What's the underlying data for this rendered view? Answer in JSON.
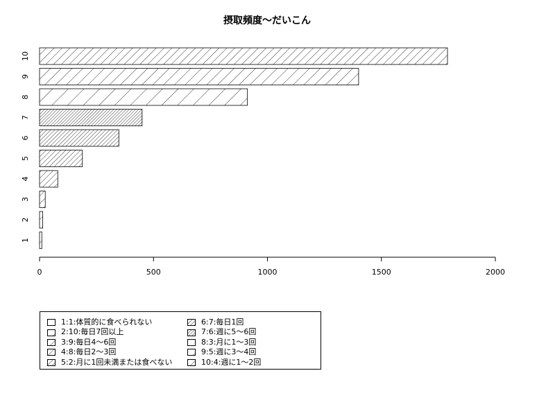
{
  "chart_data": {
    "type": "bar",
    "orientation": "horizontal",
    "title": "摂取頻度〜だいこん",
    "categories": [
      "1",
      "2",
      "3",
      "4",
      "5",
      "6",
      "7",
      "8",
      "9",
      "10"
    ],
    "values": [
      10,
      14,
      25,
      80,
      188,
      348,
      450,
      912,
      1400,
      1790
    ],
    "xlim": [
      0,
      2000
    ],
    "x_ticks": [
      0,
      500,
      1000,
      1500,
      2000
    ],
    "grid": false,
    "legend_position": "bottom-left",
    "patterns": [
      {
        "angle": 45,
        "density": 1
      },
      {
        "angle": 45,
        "density": 2
      },
      {
        "angle": 45,
        "density": 3
      },
      {
        "angle": 45,
        "density": 4
      },
      {
        "angle": 45,
        "density": 5
      },
      {
        "angle": 45,
        "density": 6
      },
      {
        "angle": 45,
        "density": 7
      },
      {
        "angle": 45,
        "density": 1
      },
      {
        "angle": 45,
        "density": 2
      },
      {
        "angle": 45,
        "density": 3
      }
    ],
    "legend": [
      "1:1:体質的に食べられない",
      "2:10:毎日7回以上",
      "3:9:毎日4〜6回",
      "4:8:毎日2〜3回",
      "5:2:月に1回未満または食べない",
      "6:7:毎日1回",
      "7:6:週に5〜6回",
      "8:3:月に1〜3回",
      "9:5:週に3〜4回",
      "10:4:週に1〜2回"
    ]
  },
  "colors": {
    "bar_fill": "#ffffff",
    "line": "#000000",
    "background": "#ffffff"
  }
}
